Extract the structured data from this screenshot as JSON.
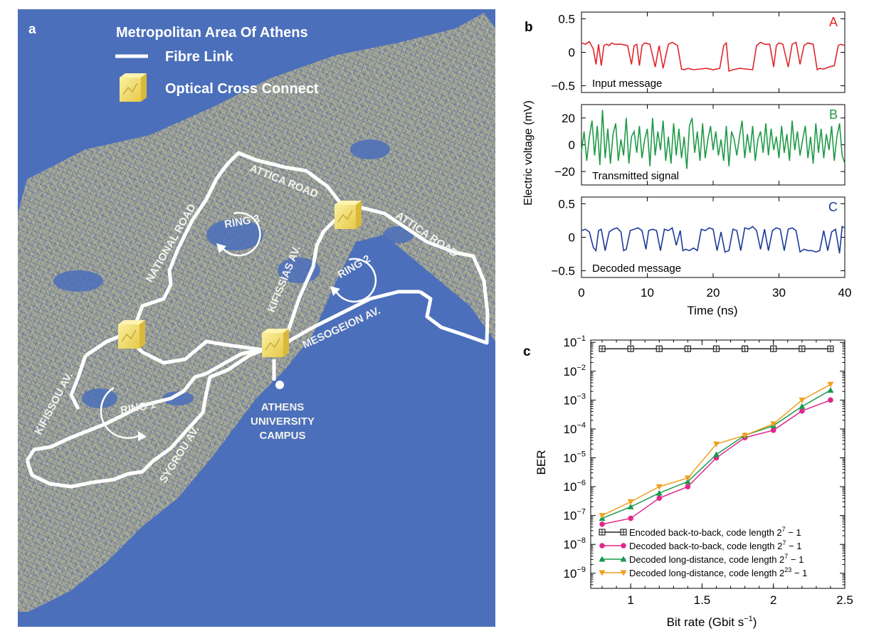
{
  "panel_a": {
    "panel_label": "a",
    "title": "Metropolitan Area Of Athens",
    "legend_fibre": "Fibre Link",
    "legend_oxc": "Optical Cross Connect",
    "roads": {
      "attica1": "ATTICA ROAD",
      "attica2": "ATTICA ROAD",
      "national": "NATIONAL ROAD",
      "kifissias": "KIFISSIAS AV.",
      "mesogeion": "MESOGEION AV.",
      "kifissou": "KIFISSOU AV.",
      "sygrou": "SYGROU AV."
    },
    "rings": {
      "ring1": "RING 1",
      "ring2": "RING 2",
      "ring3": "RING 3"
    },
    "campus": [
      "ATHENS",
      "UNIVERSITY",
      "CAMPUS"
    ]
  },
  "panel_b": {
    "panel_label": "b",
    "ylabel": "Electric voltage (mV)",
    "xlabel": "Time (ns)",
    "x_ticks": [
      "0",
      "10",
      "20",
      "30",
      "40"
    ]
  },
  "panel_c": {
    "panel_label": "c",
    "xlabel": "Bit rate (Gbit s",
    "xlabel_sup": "−1",
    "xlabel_tail": ")",
    "ylabel": "BER",
    "x_ticks": [
      "1",
      "1.5",
      "2",
      "2.5"
    ]
  },
  "colors": {
    "map_bg": "#4b6fbb",
    "oxc": "#f0dc5a",
    "signal_a": "#e0262b",
    "signal_b": "#1f9a47",
    "signal_c": "#1e3a9a",
    "series1": "#222222",
    "series2": "#e0288c",
    "series3": "#1a9a4a",
    "series4": "#f0a020"
  },
  "chart_data": [
    {
      "type": "line",
      "label": "A",
      "text": "Input message",
      "color": "#e0262b",
      "ylim": [
        -0.6,
        0.6
      ],
      "y_ticks": [
        0.5,
        0,
        -0.5
      ],
      "y_tick_labels": [
        "0.5",
        "0",
        "−0.5"
      ],
      "xlim": [
        0,
        40
      ],
      "x": [
        0,
        0.6,
        1.2,
        1.8,
        2.2,
        2.6,
        3.0,
        3.4,
        3.8,
        4.2,
        4.6,
        5.0,
        6.0,
        7.0,
        7.6,
        8.0,
        8.4,
        8.8,
        9.2,
        9.6,
        10.4,
        11.2,
        11.8,
        12.4,
        13.2,
        13.8,
        14.6,
        15.2,
        15.6,
        16.2,
        17.0,
        18.0,
        19.0,
        20.0,
        21.0,
        21.6,
        22.0,
        22.4,
        23.0,
        24.0,
        25.0,
        26.0,
        26.6,
        27.2,
        27.8,
        28.6,
        29.2,
        29.6,
        30.0,
        30.6,
        31.4,
        32.0,
        32.6,
        33.2,
        33.8,
        34.4,
        35.2,
        35.8,
        36.2,
        36.8,
        37.6,
        38.4,
        39.0,
        39.4,
        40.0
      ],
      "y": [
        0.14,
        0.12,
        0.16,
        0.05,
        -0.18,
        0.12,
        -0.2,
        0.1,
        0.12,
        0.1,
        0.14,
        0.12,
        0.12,
        0.1,
        -0.18,
        0.1,
        0.12,
        -0.2,
        0.1,
        0.14,
        0.12,
        -0.22,
        0.1,
        -0.24,
        0.12,
        0.15,
        0.1,
        -0.25,
        -0.26,
        -0.24,
        -0.26,
        -0.25,
        -0.24,
        -0.26,
        -0.24,
        0.1,
        0.14,
        -0.28,
        -0.26,
        -0.24,
        -0.25,
        -0.26,
        0.1,
        0.15,
        0.12,
        0.12,
        -0.22,
        0.1,
        0.14,
        0.12,
        -0.22,
        0.12,
        0.15,
        -0.18,
        0.1,
        0.14,
        0.12,
        -0.26,
        -0.24,
        -0.25,
        -0.22,
        -0.2,
        0.1,
        0.12,
        0.1
      ]
    },
    {
      "type": "line",
      "label": "B",
      "text": "Transmitted signal",
      "color": "#1f9a47",
      "ylim": [
        -30,
        30
      ],
      "y_ticks": [
        20,
        0,
        -20
      ],
      "y_tick_labels": [
        "20",
        "0",
        "−20"
      ],
      "xlim": [
        0,
        40
      ],
      "x": [
        0,
        0.4,
        0.8,
        1.2,
        1.6,
        2.0,
        2.4,
        2.8,
        3.2,
        3.6,
        4.0,
        4.4,
        4.8,
        5.2,
        5.6,
        6.0,
        6.4,
        6.8,
        7.2,
        7.6,
        8.0,
        8.4,
        8.8,
        9.2,
        9.6,
        10.0,
        10.4,
        10.8,
        11.2,
        11.6,
        12.0,
        12.4,
        12.8,
        13.2,
        13.6,
        14.0,
        14.4,
        14.8,
        15.2,
        15.6,
        16.0,
        16.4,
        16.8,
        17.2,
        17.6,
        18.0,
        18.4,
        18.8,
        19.2,
        19.6,
        20.0,
        20.4,
        20.8,
        21.2,
        21.6,
        22.0,
        22.4,
        22.8,
        23.2,
        23.6,
        24.0,
        24.4,
        24.8,
        25.2,
        25.6,
        26.0,
        26.4,
        26.8,
        27.2,
        27.6,
        28.0,
        28.4,
        28.8,
        29.2,
        29.6,
        30.0,
        30.4,
        30.8,
        31.2,
        31.6,
        32.0,
        32.4,
        32.8,
        33.2,
        33.6,
        34.0,
        34.4,
        34.8,
        35.2,
        35.6,
        36.0,
        36.4,
        36.8,
        37.2,
        37.6,
        38.0,
        38.4,
        38.8,
        39.2,
        39.6,
        40.0
      ],
      "y": [
        -5,
        10,
        -12,
        6,
        18,
        -8,
        14,
        -15,
        26,
        -10,
        12,
        -14,
        8,
        16,
        -12,
        4,
        -8,
        20,
        -14,
        6,
        10,
        -6,
        14,
        -10,
        4,
        12,
        -16,
        20,
        -8,
        10,
        -4,
        18,
        -12,
        6,
        -14,
        16,
        -8,
        12,
        -10,
        6,
        -18,
        14,
        20,
        -6,
        10,
        -12,
        16,
        -10,
        4,
        14,
        -4,
        10,
        -8,
        4,
        -12,
        14,
        -16,
        10,
        4,
        -8,
        6,
        18,
        -10,
        8,
        -6,
        14,
        -12,
        4,
        10,
        -6,
        16,
        -8,
        12,
        -4,
        6,
        -10,
        14,
        -6,
        8,
        -12,
        18,
        -4,
        10,
        -8,
        4,
        14,
        -10,
        6,
        -14,
        16,
        -6,
        12,
        -10,
        8,
        -4,
        14,
        -12,
        6,
        16,
        -8,
        -14
      ]
    },
    {
      "type": "line",
      "label": "C",
      "text": "Decoded message",
      "color": "#1e3a9a",
      "ylim": [
        -0.6,
        0.6
      ],
      "y_ticks": [
        0.5,
        0,
        -0.5
      ],
      "y_tick_labels": [
        "0.5",
        "0",
        "−0.5"
      ],
      "xlim": [
        0,
        40
      ],
      "x": [
        0,
        0.6,
        1.2,
        1.8,
        2.2,
        2.6,
        3.0,
        3.6,
        4.2,
        4.8,
        5.4,
        6.0,
        6.4,
        6.8,
        7.4,
        8.0,
        8.6,
        9.2,
        9.8,
        10.2,
        10.8,
        11.4,
        12.0,
        12.6,
        13.2,
        13.8,
        14.4,
        15.0,
        15.4,
        15.8,
        16.4,
        17.0,
        17.6,
        18.2,
        18.8,
        19.4,
        20.0,
        20.6,
        21.2,
        21.8,
        22.4,
        23.0,
        23.6,
        24.2,
        24.8,
        25.4,
        26.0,
        26.6,
        27.2,
        27.8,
        28.4,
        29.0,
        29.6,
        30.2,
        30.8,
        31.4,
        32.0,
        32.6,
        33.2,
        33.8,
        34.4,
        35.0,
        35.6,
        36.2,
        36.8,
        37.4,
        38.0,
        38.6,
        39.2,
        39.6,
        40.0
      ],
      "y": [
        0.1,
        0.12,
        0.08,
        -0.15,
        -0.2,
        0.1,
        0.12,
        -0.2,
        0.08,
        0.12,
        0.14,
        0.08,
        -0.2,
        -0.18,
        0.1,
        0.12,
        0.14,
        0.1,
        -0.18,
        0.1,
        0.12,
        0.1,
        -0.2,
        0.12,
        0.1,
        0.14,
        -0.12,
        0.1,
        -0.2,
        -0.18,
        -0.2,
        -0.16,
        -0.2,
        0.12,
        0.1,
        0.14,
        0.12,
        -0.2,
        0.08,
        -0.22,
        -0.2,
        0.12,
        0.1,
        -0.2,
        0.14,
        0.12,
        0.16,
        0.1,
        -0.18,
        0.12,
        -0.2,
        0.1,
        0.14,
        0.12,
        -0.2,
        0.12,
        0.14,
        0.1,
        -0.22,
        -0.18,
        -0.2,
        -0.2,
        -0.22,
        -0.2,
        0.1,
        -0.2,
        0.08,
        0.12,
        -0.24,
        0.16,
        0.14
      ]
    },
    {
      "type": "line",
      "title": "",
      "xlabel": "Bit rate (Gbit s−1)",
      "ylabel": "BER",
      "y_scale": "log",
      "xlim": [
        0.72,
        2.5
      ],
      "ylim": [
        3e-10,
        0.12
      ],
      "x_ticks": [
        1,
        1.5,
        2,
        2.5
      ],
      "y_tick_exponents": [
        -1,
        -2,
        -3,
        -4,
        -5,
        -6,
        -7,
        -8,
        -9
      ],
      "legend_position": "lower-right",
      "x": [
        0.8,
        1.0,
        1.2,
        1.4,
        1.6,
        1.8,
        2.0,
        2.2,
        2.4
      ],
      "series": [
        {
          "name": "Encoded back-to-back, code length 2^7 − 1",
          "legend_base": "Encoded back-to-back, code length 2",
          "legend_exp": "7",
          "legend_tail": " − 1",
          "color": "#222222",
          "marker": "square-cross",
          "values": [
            0.06,
            0.06,
            0.06,
            0.06,
            0.06,
            0.06,
            0.06,
            0.06,
            0.06
          ]
        },
        {
          "name": "Decoded back-to-back, code length 2^7 − 1",
          "legend_base": "Decoded back-to-back, code length 2",
          "legend_exp": "7",
          "legend_tail": " − 1",
          "color": "#e0288c",
          "marker": "circle",
          "values": [
            5e-08,
            8e-08,
            4e-07,
            1e-06,
            1e-05,
            5e-05,
            9e-05,
            0.00042,
            0.001
          ]
        },
        {
          "name": "Decoded long-distance, code length 2^7 − 1",
          "legend_base": "Decoded long-distance, code length 2",
          "legend_exp": "7",
          "legend_tail": " − 1",
          "color": "#1a9a4a",
          "marker": "triangle-up",
          "values": [
            8e-08,
            2e-07,
            6e-07,
            1.5e-06,
            1.3e-05,
            6e-05,
            0.00013,
            0.0006,
            0.0022
          ]
        },
        {
          "name": "Decoded long-distance, code length 2^23 − 1",
          "legend_base": "Decoded long-distance, code length 2",
          "legend_exp": "23",
          "legend_tail": " − 1",
          "color": "#f0a020",
          "marker": "triangle-down",
          "values": [
            1e-07,
            3e-07,
            1e-06,
            2e-06,
            3e-05,
            6e-05,
            0.00015,
            0.001,
            0.0035
          ]
        }
      ]
    }
  ]
}
